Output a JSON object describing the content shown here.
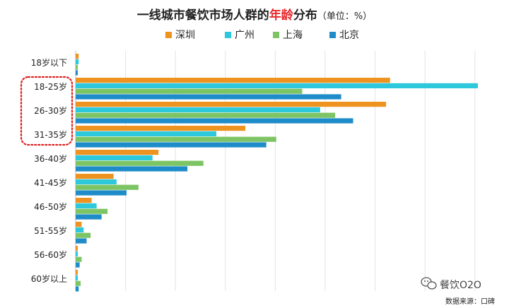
{
  "chart_data": {
    "type": "bar",
    "orientation": "horizontal",
    "title": "一线城市餐饮市场人群的年龄分布",
    "title_highlight": "年龄",
    "title_unit": "（单位：%）",
    "categories": [
      "18岁以下",
      "18-25岁",
      "26-30岁",
      "31-35岁",
      "36-40岁",
      "41-45岁",
      "46-50岁",
      "51-55岁",
      "56-60岁",
      "60岁以上"
    ],
    "series": [
      {
        "name": "深圳",
        "color": "#ef9320",
        "values": [
          0.3,
          31.5,
          31.1,
          17.0,
          8.3,
          3.8,
          1.6,
          0.6,
          0.1,
          0.1
        ]
      },
      {
        "name": "广州",
        "color": "#2dc8dc",
        "values": [
          0.3,
          40.3,
          24.5,
          14.1,
          7.7,
          4.1,
          2.1,
          0.8,
          0.2,
          0.1
        ]
      },
      {
        "name": "上海",
        "color": "#7dc465",
        "values": [
          0.1,
          22.7,
          26.0,
          20.1,
          12.8,
          6.3,
          3.2,
          1.5,
          0.6,
          0.5
        ]
      },
      {
        "name": "北京",
        "color": "#1e8cc8",
        "values": [
          0.1,
          26.6,
          27.8,
          19.1,
          11.2,
          5.1,
          2.6,
          1.1,
          0.4,
          0.3
        ]
      }
    ],
    "xlim": [
      0,
      42
    ],
    "grid": true,
    "legend_position": "top",
    "highlighted_categories": [
      "18-25岁",
      "26-30岁",
      "31-35岁"
    ],
    "highlight_color": "#e02020"
  },
  "footer": {
    "brand": "餐饮O2O",
    "source": "数据来源：口碑"
  }
}
